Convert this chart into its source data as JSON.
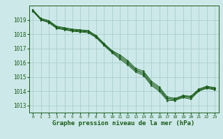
{
  "bg_color": "#cce8e8",
  "grid_color": "#aacece",
  "line_color": "#1a5c1a",
  "xlabel": "Graphe pression niveau de la mer (hPa)",
  "xlabel_fontsize": 6.5,
  "xlim": [
    -0.5,
    23.5
  ],
  "ylim": [
    1012.5,
    1020.0
  ],
  "yticks": [
    1013,
    1014,
    1015,
    1016,
    1017,
    1018,
    1019
  ],
  "xticks": [
    0,
    1,
    2,
    3,
    4,
    5,
    6,
    7,
    8,
    9,
    10,
    11,
    12,
    13,
    14,
    15,
    16,
    17,
    18,
    19,
    20,
    21,
    22,
    23
  ],
  "series": [
    [
      1019.6,
      1019.0,
      1018.8,
      1018.4,
      1018.3,
      1018.2,
      1018.15,
      1018.1,
      1017.75,
      1017.2,
      1016.7,
      1016.25,
      1015.85,
      1015.35,
      1015.1,
      1014.4,
      1014.0,
      1013.35,
      1013.35,
      1013.55,
      1013.45,
      1014.0,
      1014.2,
      1014.1
    ],
    [
      1019.6,
      1019.0,
      1018.85,
      1018.45,
      1018.35,
      1018.25,
      1018.2,
      1018.15,
      1017.8,
      1017.25,
      1016.75,
      1016.35,
      1015.95,
      1015.45,
      1015.2,
      1014.5,
      1014.1,
      1013.45,
      1013.4,
      1013.6,
      1013.55,
      1014.05,
      1014.25,
      1014.15
    ],
    [
      1019.65,
      1019.05,
      1018.9,
      1018.5,
      1018.4,
      1018.3,
      1018.25,
      1018.2,
      1017.85,
      1017.3,
      1016.8,
      1016.45,
      1016.05,
      1015.5,
      1015.3,
      1014.6,
      1014.2,
      1013.5,
      1013.45,
      1013.65,
      1013.6,
      1014.1,
      1014.3,
      1014.2
    ],
    [
      1019.7,
      1019.1,
      1018.95,
      1018.55,
      1018.45,
      1018.35,
      1018.3,
      1018.25,
      1017.9,
      1017.35,
      1016.85,
      1016.55,
      1016.15,
      1015.6,
      1015.4,
      1014.7,
      1014.3,
      1013.6,
      1013.5,
      1013.7,
      1013.65,
      1014.15,
      1014.35,
      1014.25
    ]
  ]
}
